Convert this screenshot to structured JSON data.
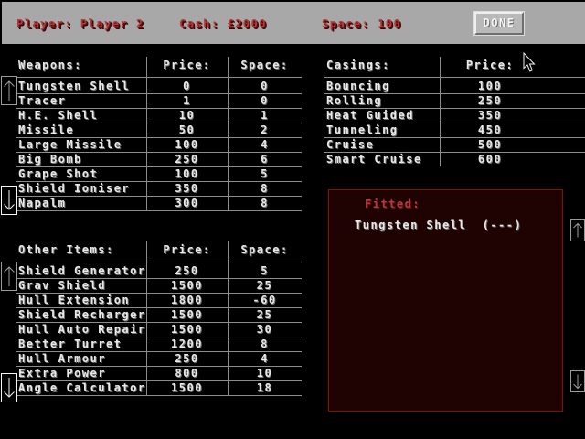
{
  "top_bar": {
    "player_label": "Player: Player 2",
    "cash_label": "Cash: £2000",
    "space_label": "Space: 100",
    "done_label": "DONE"
  },
  "tables": {
    "weapons": {
      "headers": [
        "Weapons:",
        "Price:",
        "Space:"
      ],
      "rows": [
        [
          "Tungsten Shell",
          "0",
          "0"
        ],
        [
          "Tracer",
          "1",
          "0"
        ],
        [
          "H.E. Shell",
          "10",
          "1"
        ],
        [
          "Missile",
          "50",
          "2"
        ],
        [
          "Large Missile",
          "100",
          "4"
        ],
        [
          "Big Bomb",
          "250",
          "6"
        ],
        [
          "Grape Shot",
          "100",
          "5"
        ],
        [
          "Shield Ioniser",
          "350",
          "8"
        ],
        [
          "Napalm",
          "300",
          "8"
        ]
      ]
    },
    "casings": {
      "headers": [
        "Casings:",
        "Price:"
      ],
      "rows": [
        [
          "Bouncing",
          "100"
        ],
        [
          "Rolling",
          "250"
        ],
        [
          "Heat Guided",
          "350"
        ],
        [
          "Tunneling",
          "450"
        ],
        [
          "Cruise",
          "500"
        ],
        [
          "Smart Cruise",
          "600"
        ]
      ]
    },
    "other_items": {
      "headers": [
        "Other Items:",
        "Price:",
        "Space:"
      ],
      "rows": [
        [
          "Shield Generator",
          "250",
          "5"
        ],
        [
          "Grav Shield",
          "1500",
          "25"
        ],
        [
          "Hull Extension",
          "1800",
          "-60"
        ],
        [
          "Shield Recharger",
          "1500",
          "25"
        ],
        [
          "Hull Auto Repair",
          "1500",
          "30"
        ],
        [
          "Better Turret",
          "1200",
          "8"
        ],
        [
          "Hull Armour",
          "250",
          "4"
        ],
        [
          "Extra Power",
          "800",
          "10"
        ],
        [
          "Angle Calculator",
          "1500",
          "18"
        ]
      ]
    }
  },
  "fitted": {
    "title": "Fitted:",
    "item": "Tungsten Shell  (---)"
  },
  "icons": {
    "scroll_up": "up-arrow",
    "scroll_down": "down-arrow"
  },
  "colors": {
    "top_bar_gray": "#a8a8a8",
    "accent_red_text": "#b23c3c",
    "table_text": "#e9e9e9",
    "grid_line": "#8c8c8c",
    "fitted_background": "#1f0303",
    "fitted_border": "#8c0b0b"
  }
}
